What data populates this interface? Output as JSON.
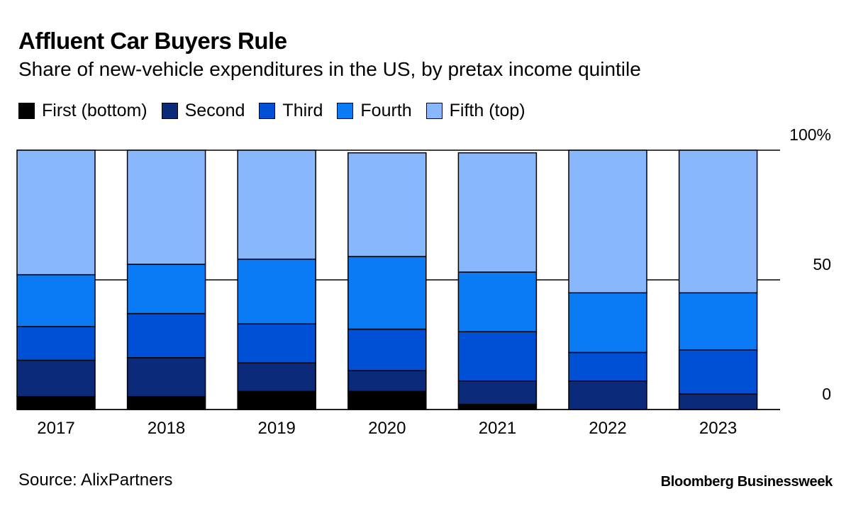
{
  "chart_data": {
    "type": "bar",
    "stacked": true,
    "title": "Affluent Car Buyers Rule",
    "subtitle": "Share of new-vehicle expenditures in the US, by pretax income quintile",
    "categories": [
      "2017",
      "2018",
      "2019",
      "2020",
      "2021",
      "2022",
      "2023"
    ],
    "series": [
      {
        "name": "First (bottom)",
        "color": "#000000",
        "values": [
          5,
          5,
          7,
          7,
          2,
          0,
          0
        ]
      },
      {
        "name": "Second",
        "color": "#0b2a7a",
        "values": [
          14,
          15,
          11,
          8,
          9,
          11,
          6
        ]
      },
      {
        "name": "Third",
        "color": "#0050d6",
        "values": [
          13,
          17,
          15,
          16,
          19,
          11,
          17
        ]
      },
      {
        "name": "Fourth",
        "color": "#0a7bf5",
        "values": [
          20,
          19,
          25,
          28,
          23,
          23,
          22
        ]
      },
      {
        "name": "Fifth (top)",
        "color": "#88b7fb",
        "values": [
          48,
          44,
          42,
          40,
          46,
          55,
          55
        ]
      }
    ],
    "ylim": [
      0,
      100
    ],
    "yticks": [
      {
        "value": 0,
        "label": "0"
      },
      {
        "value": 50,
        "label": "50"
      },
      {
        "value": 100,
        "label": "100%"
      }
    ],
    "xlabel": "",
    "ylabel": ""
  },
  "source": "Source: AlixPartners",
  "brand": "Bloomberg Businessweek"
}
